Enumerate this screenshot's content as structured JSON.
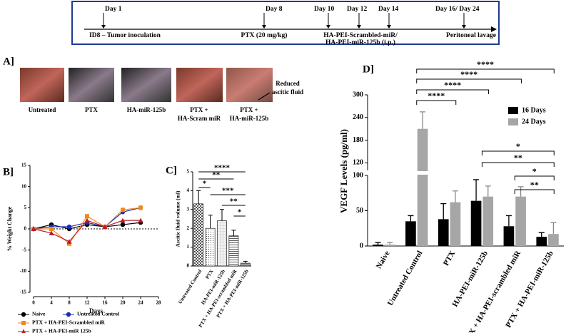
{
  "timeline": {
    "days": [
      "Day 1",
      "Day 8",
      "Day 10",
      "Day 12",
      "Day 14",
      "Day 16/ Day 24"
    ],
    "events": [
      "ID8 – Tumor inoculation",
      "PTX (20 mg/kg)",
      "HA-PEI-Scrambled-miR/",
      "HA-PEI-miR-125b (i.p.)",
      "Peritoneal lavage"
    ]
  },
  "panel_a": {
    "label": "A]",
    "captions": [
      [
        "Untreated"
      ],
      [
        "PTX"
      ],
      [
        "HA-miR-125b"
      ],
      [
        "PTX +",
        "HA-Scram miR"
      ],
      [
        "PTX +",
        "HA-miR-125b"
      ]
    ],
    "annotation": [
      "Reduced",
      "ascitic fluid"
    ]
  },
  "chart_data": [
    {
      "type": "line",
      "panel_label": "B]",
      "ylabel": "% Weight Change",
      "xlabel": "Days",
      "x": [
        0,
        4,
        8,
        12,
        16,
        20,
        24
      ],
      "xlim": [
        0,
        28
      ],
      "xticks": [
        0,
        4,
        8,
        12,
        16,
        20,
        24,
        28
      ],
      "ylim": [
        -15,
        15
      ],
      "yticks": [
        -15,
        -10,
        -5,
        0,
        5,
        10,
        15
      ],
      "hline": 0,
      "series": [
        {
          "name": "Naive",
          "color": "#000000",
          "marker": "circle",
          "values": [
            0,
            1,
            0,
            1,
            0.5,
            1,
            1.5
          ]
        },
        {
          "name": "Untreated Control",
          "color": "#1a2db8",
          "marker": "circle",
          "values": [
            0,
            0.5,
            0.5,
            1.5,
            0.5,
            4,
            5
          ]
        },
        {
          "name": "PTX + HA-PEI-Scrambled miR",
          "color": "#f08a1c",
          "marker": "square",
          "values": [
            0,
            0,
            -3.5,
            3,
            0.5,
            4.5,
            5
          ]
        },
        {
          "name": "PTX + HA-PEI-miR 125b",
          "color": "#c0182a",
          "marker": "triangle",
          "values": [
            0,
            -1,
            -3,
            2,
            0.5,
            2,
            2
          ]
        }
      ]
    },
    {
      "type": "bar",
      "panel_label": "C]",
      "ylabel": "Ascitic fluid volume (ml)",
      "categories": [
        "Untreated Control",
        "PTX",
        "HA-PEI-miR-125b",
        "PTX + HA-PEI-scrambled miR",
        "PTX + HA-PEI-miR-125b"
      ],
      "values": [
        3.3,
        2.0,
        2.4,
        1.6,
        0.15
      ],
      "errors": [
        0.7,
        0.7,
        0.6,
        0.3,
        0.1
      ],
      "ylim": [
        0,
        5
      ],
      "yticks": [
        0,
        1,
        2,
        3,
        4,
        5
      ],
      "brackets": [
        {
          "from": 0,
          "to": 4,
          "label": "****"
        },
        {
          "from": 0,
          "to": 3,
          "label": "**"
        },
        {
          "from": 0,
          "to": 1,
          "label": "*"
        },
        {
          "from": 1,
          "to": 4,
          "label": "***"
        },
        {
          "from": 2,
          "to": 4,
          "label": "**"
        },
        {
          "from": 3,
          "to": 4,
          "label": "*"
        }
      ]
    },
    {
      "type": "grouped_bar",
      "panel_label": "D]",
      "ylabel": "VEGF Levels (pg/ml)",
      "categories": [
        "Naive",
        "Untreated Control",
        "PTX",
        "HA-PEI-miR-125b",
        "PTX + HA-PEI-scrambled miR",
        "PTX + HA-PEI-miR-125b"
      ],
      "ylim_segments": [
        [
          0,
          100
        ],
        [
          100,
          300
        ]
      ],
      "yticks": [
        0,
        50,
        100,
        120,
        180,
        240,
        300
      ],
      "series": [
        {
          "name": "16 Days",
          "color": "#000000",
          "values": [
            2,
            35,
            38,
            64,
            28,
            13
          ],
          "errors": [
            3,
            8,
            22,
            30,
            15,
            6
          ]
        },
        {
          "name": "24 Days",
          "color": "#a6a6a6",
          "values": [
            2,
            210,
            62,
            70,
            70,
            17
          ],
          "errors": [
            3,
            45,
            16,
            15,
            14,
            16
          ]
        }
      ],
      "brackets": [
        {
          "from": 1,
          "to": 5,
          "label": "****"
        },
        {
          "from": 1,
          "to": 4,
          "label": "****"
        },
        {
          "from": 1,
          "to": 3,
          "label": "****"
        },
        {
          "from": 1,
          "to": 2,
          "label": "****"
        },
        {
          "from": 3,
          "to": 5,
          "label": "*"
        },
        {
          "from": 3,
          "to": 5,
          "label": "**"
        },
        {
          "from": 4,
          "to": 5,
          "label": "*"
        },
        {
          "from": 4,
          "to": 5,
          "label": "**"
        }
      ]
    }
  ]
}
